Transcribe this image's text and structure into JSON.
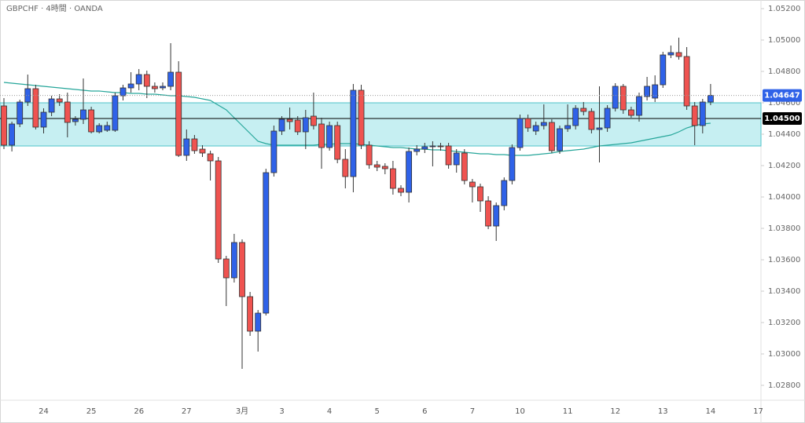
{
  "chart_data": {
    "type": "candlestick",
    "title": "GBPCHF · 4時間 · OANDA",
    "categories": [
      null,
      null,
      null,
      null,
      null,
      "24",
      null,
      null,
      null,
      null,
      null,
      "25",
      null,
      null,
      null,
      null,
      null,
      "26",
      null,
      null,
      null,
      null,
      null,
      "27",
      null,
      null,
      null,
      null,
      null,
      null,
      "3月",
      null,
      null,
      null,
      null,
      "3",
      null,
      null,
      null,
      null,
      null,
      "4",
      null,
      null,
      null,
      null,
      null,
      "5",
      null,
      null,
      null,
      null,
      null,
      "6",
      null,
      null,
      null,
      null,
      null,
      "7",
      null,
      null,
      null,
      null,
      null,
      "10",
      null,
      null,
      null,
      null,
      null,
      "11",
      null,
      null,
      null,
      null,
      null,
      "12",
      null,
      null,
      null,
      null,
      null,
      "13",
      null,
      null,
      null,
      null,
      null,
      "14",
      null,
      null,
      null,
      null,
      null,
      "17"
    ],
    "open": [
      1.0458,
      1.0433,
      1.04465,
      1.04605,
      1.0469,
      1.04445,
      1.0454,
      1.04625,
      1.04605,
      1.0448,
      1.04495,
      1.04555,
      1.04415,
      1.04425,
      1.04425,
      1.04645,
      1.04695,
      1.0472,
      1.0478,
      1.04705,
      1.04695,
      1.04705,
      1.04795,
      1.04265,
      1.0437,
      1.04305,
      1.04275,
      1.0423,
      1.03605,
      1.03485,
      1.0371,
      1.03365,
      1.03145,
      1.0326,
      1.04155,
      1.0442,
      1.04495,
      1.0449,
      1.04415,
      1.04515,
      1.04465,
      1.04315,
      1.04455,
      1.0424,
      1.0413,
      1.0468,
      1.0433,
      1.04205,
      1.04195,
      1.0418,
      1.04055,
      1.0403,
      1.0429,
      1.04305,
      1.0432,
      1.04325,
      1.04325,
      1.04205,
      1.0428,
      1.04095,
      1.04065,
      1.03975,
      1.03815,
      1.03945,
      1.04105,
      1.04315,
      1.045,
      1.0442,
      1.04455,
      1.04475,
      1.04295,
      1.04435,
      1.04455,
      1.04565,
      1.04545,
      1.0443,
      1.0444,
      1.04565,
      1.04705,
      1.04555,
      1.0452,
      1.0464,
      1.0463,
      1.04715,
      1.04905,
      1.0492,
      1.04895,
      1.0458,
      1.04455,
      1.04605,
      null,
      null,
      null,
      null,
      null,
      null
    ],
    "high": [
      1.0463,
      1.0448,
      1.0462,
      1.0478,
      1.04715,
      1.04565,
      1.04645,
      1.04655,
      1.04665,
      1.04515,
      1.04755,
      1.04575,
      1.0447,
      1.0448,
      1.04665,
      1.04715,
      1.04795,
      1.04815,
      1.04805,
      1.0473,
      1.0473,
      1.0498,
      1.04865,
      1.0443,
      1.04395,
      1.0433,
      1.04295,
      1.04255,
      1.03625,
      1.03765,
      1.0373,
      1.03395,
      1.0328,
      1.0418,
      1.04455,
      1.04515,
      1.0457,
      1.04515,
      1.04555,
      1.04665,
      1.04505,
      1.0448,
      1.0448,
      1.04305,
      1.0472,
      1.04715,
      1.04355,
      1.0423,
      1.04215,
      1.0423,
      1.04075,
      1.04315,
      1.0433,
      1.04345,
      1.04355,
      1.04345,
      1.04345,
      1.04305,
      1.04305,
      1.04115,
      1.04085,
      1.04005,
      1.03965,
      1.04125,
      1.04335,
      1.04525,
      1.04525,
      1.0448,
      1.0459,
      1.04495,
      1.04455,
      1.0459,
      1.04585,
      1.04605,
      1.04565,
      1.04705,
      1.04585,
      1.04725,
      1.0472,
      1.04575,
      1.04665,
      1.04765,
      1.04775,
      1.04925,
      1.04965,
      1.05015,
      1.04955,
      1.04605,
      1.04625,
      1.0472,
      null,
      null,
      null,
      null,
      null,
      null
    ],
    "low": [
      1.04305,
      1.0429,
      1.04445,
      1.0458,
      1.0443,
      1.04405,
      1.04515,
      1.0458,
      1.0438,
      1.04455,
      1.04465,
      1.04405,
      1.04405,
      1.04415,
      1.04415,
      1.04615,
      1.04665,
      1.0468,
      1.0463,
      1.04665,
      1.0468,
      1.0468,
      1.04255,
      1.0423,
      1.04275,
      1.04255,
      1.04105,
      1.0358,
      1.03305,
      1.03455,
      1.02905,
      1.03115,
      1.03015,
      1.03245,
      1.0413,
      1.04395,
      1.0443,
      1.04395,
      1.04305,
      1.0443,
      1.0418,
      1.04295,
      1.04215,
      1.04055,
      1.0403,
      1.04305,
      1.0418,
      1.04165,
      1.04145,
      1.04015,
      1.04005,
      1.03965,
      1.04265,
      1.0428,
      1.04195,
      1.04295,
      1.0418,
      1.04155,
      1.0408,
      1.03965,
      1.03905,
      1.03795,
      1.0372,
      1.03915,
      1.0408,
      1.04295,
      1.04415,
      1.04395,
      1.0443,
      1.0428,
      1.04275,
      1.04415,
      1.0443,
      1.0452,
      1.04405,
      1.0422,
      1.04415,
      1.04545,
      1.0453,
      1.04505,
      1.0448,
      1.04615,
      1.04605,
      1.04695,
      1.04885,
      1.04875,
      1.04555,
      1.0433,
      1.04405,
      1.04585,
      null,
      null,
      null,
      null,
      null,
      null
    ],
    "close": [
      1.0433,
      1.04465,
      1.04605,
      1.0469,
      1.04445,
      1.0454,
      1.04625,
      1.04605,
      1.04475,
      1.04495,
      1.04555,
      1.04415,
      1.04455,
      1.04455,
      1.04645,
      1.04695,
      1.0472,
      1.0478,
      1.04705,
      1.0469,
      1.04705,
      1.04795,
      1.04265,
      1.0437,
      1.04295,
      1.0428,
      1.0423,
      1.03605,
      1.03485,
      1.0371,
      1.03365,
      1.03145,
      1.0326,
      1.04155,
      1.0442,
      1.04495,
      1.0448,
      1.04415,
      1.04505,
      1.04455,
      1.04315,
      1.04455,
      1.0424,
      1.0413,
      1.0468,
      1.0433,
      1.04205,
      1.0419,
      1.0418,
      1.04055,
      1.0403,
      1.0429,
      1.04305,
      1.0432,
      1.04325,
      1.0432,
      1.04205,
      1.0428,
      1.04105,
      1.04065,
      1.03975,
      1.03815,
      1.03945,
      1.04105,
      1.04315,
      1.045,
      1.0444,
      1.04455,
      1.04475,
      1.04295,
      1.04435,
      1.04455,
      1.04565,
      1.04545,
      1.0443,
      1.0444,
      1.04565,
      1.04705,
      1.04555,
      1.0452,
      1.0464,
      1.04705,
      1.04715,
      1.04905,
      1.0492,
      1.04895,
      1.0458,
      1.04455,
      1.04605,
      1.04647,
      null,
      null,
      null,
      null,
      null,
      null
    ],
    "up_color": "#2f62e8",
    "down_color": "#ef5350",
    "moving_average": {
      "color": "#26a69a",
      "values": [
        1.0473,
        1.04725,
        1.0472,
        1.04715,
        1.0471,
        1.04705,
        1.047,
        1.04695,
        1.0469,
        1.04685,
        1.0468,
        1.04675,
        1.04675,
        1.0467,
        1.04665,
        1.04665,
        1.0466,
        1.0466,
        1.04655,
        1.04655,
        1.0465,
        1.04645,
        1.04645,
        1.0464,
        1.04635,
        1.04625,
        1.04615,
        1.04585,
        1.04555,
        1.04505,
        1.04455,
        1.04405,
        1.04355,
        1.0434,
        1.0433,
        1.0433,
        1.0433,
        1.0433,
        1.0433,
        1.0433,
        1.04335,
        1.04335,
        1.0434,
        1.0434,
        1.0434,
        1.04335,
        1.0433,
        1.04325,
        1.0432,
        1.04315,
        1.04315,
        1.0431,
        1.04305,
        1.04305,
        1.043,
        1.043,
        1.04295,
        1.0429,
        1.04285,
        1.0428,
        1.04275,
        1.04275,
        1.0427,
        1.0427,
        1.04265,
        1.04265,
        1.04265,
        1.0427,
        1.04275,
        1.0428,
        1.0429,
        1.04295,
        1.043,
        1.04305,
        1.04315,
        1.04325,
        1.0433,
        1.04335,
        1.0434,
        1.04345,
        1.04355,
        1.04365,
        1.04375,
        1.04385,
        1.04395,
        1.04415,
        1.0444,
        1.04455,
        1.04465,
        1.0447,
        null,
        null,
        null,
        null,
        null,
        null
      ]
    },
    "zone": {
      "range": [
        1.04325,
        1.046
      ],
      "color": "#c6eff2",
      "border": "#4fc3c9"
    },
    "price_lines": [
      {
        "value": 1.045,
        "label": "1.04500",
        "color": "#000000"
      }
    ],
    "ylim": [
      1.02705,
      1.05255
    ],
    "yticks": [
      {
        "value": 1.052,
        "label": "1.05200"
      },
      {
        "value": 1.05,
        "label": "1.05000"
      },
      {
        "value": 1.048,
        "label": "1.04800"
      },
      {
        "value": 1.046,
        "label": "1.04600"
      },
      {
        "value": 1.044,
        "label": "1.04400"
      },
      {
        "value": 1.042,
        "label": "1.04200"
      },
      {
        "value": 1.04,
        "label": "1.04000"
      },
      {
        "value": 1.038,
        "label": "1.03800"
      },
      {
        "value": 1.036,
        "label": "1.03600"
      },
      {
        "value": 1.034,
        "label": "1.03400"
      },
      {
        "value": 1.032,
        "label": "1.03200"
      },
      {
        "value": 1.03,
        "label": "1.03000"
      },
      {
        "value": 1.028,
        "label": "1.02800"
      }
    ]
  }
}
